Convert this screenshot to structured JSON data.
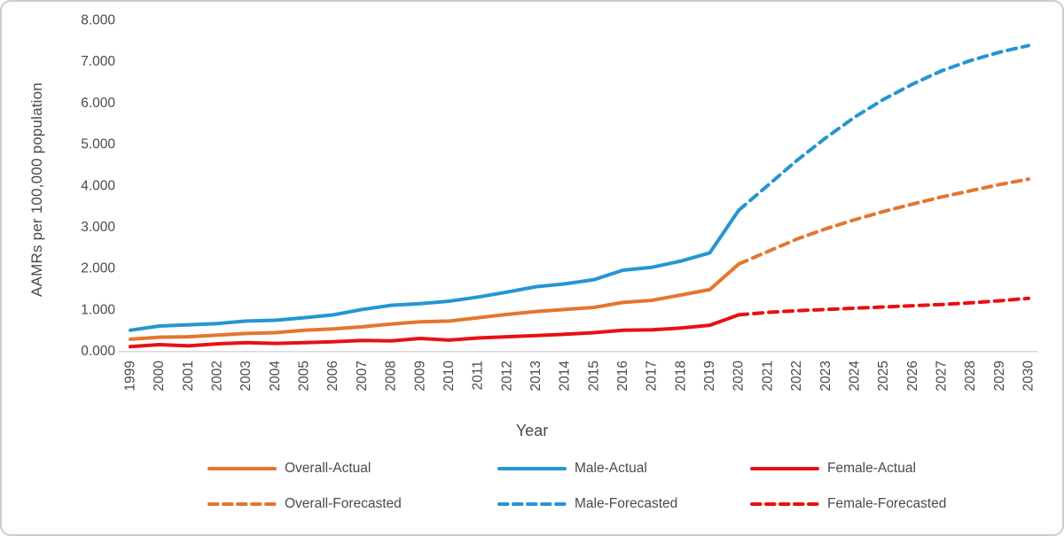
{
  "colors": {
    "axis_line": "#d9d9d9",
    "text": "#4a4a4a",
    "border": "#cccccc",
    "overall": "#e4762f",
    "male": "#2596d1",
    "female": "#e81014"
  },
  "chart_data": {
    "type": "line",
    "title": "",
    "xlabel": "Year",
    "ylabel": "AAMRs per 100,000 population",
    "ylim": [
      0,
      8
    ],
    "ytick_labels": [
      "0.000",
      "1.000",
      "2.000",
      "3.000",
      "4.000",
      "5.000",
      "6.000",
      "7.000",
      "8.000"
    ],
    "grid": "off",
    "legend_position": "bottom",
    "x": [
      1999,
      2000,
      2001,
      2002,
      2003,
      2004,
      2005,
      2006,
      2007,
      2008,
      2009,
      2010,
      2011,
      2012,
      2013,
      2014,
      2015,
      2016,
      2017,
      2018,
      2019,
      2020,
      2021,
      2022,
      2023,
      2024,
      2025,
      2026,
      2027,
      2028,
      2029,
      2030
    ],
    "series": [
      {
        "name": "Overall-Actual",
        "color_key": "overall",
        "style": "solid",
        "values": [
          0.28,
          0.33,
          0.34,
          0.38,
          0.42,
          0.44,
          0.5,
          0.53,
          0.58,
          0.65,
          0.7,
          0.72,
          0.8,
          0.88,
          0.95,
          1.0,
          1.05,
          1.17,
          1.22,
          1.35,
          1.48,
          2.1,
          null,
          null,
          null,
          null,
          null,
          null,
          null,
          null,
          null,
          null
        ]
      },
      {
        "name": "Male-Actual",
        "color_key": "male",
        "style": "solid",
        "values": [
          0.5,
          0.6,
          0.63,
          0.66,
          0.72,
          0.74,
          0.8,
          0.87,
          1.0,
          1.1,
          1.14,
          1.2,
          1.3,
          1.42,
          1.55,
          1.62,
          1.72,
          1.95,
          2.02,
          2.17,
          2.37,
          3.4,
          null,
          null,
          null,
          null,
          null,
          null,
          null,
          null,
          null,
          null
        ]
      },
      {
        "name": "Female-Actual",
        "color_key": "female",
        "style": "solid",
        "values": [
          0.1,
          0.15,
          0.12,
          0.17,
          0.2,
          0.18,
          0.2,
          0.22,
          0.25,
          0.24,
          0.3,
          0.26,
          0.31,
          0.34,
          0.37,
          0.4,
          0.44,
          0.5,
          0.51,
          0.55,
          0.62,
          0.87,
          null,
          null,
          null,
          null,
          null,
          null,
          null,
          null,
          null,
          null
        ]
      },
      {
        "name": "Overall-Forecasted",
        "color_key": "overall",
        "style": "dashed",
        "values": [
          null,
          null,
          null,
          null,
          null,
          null,
          null,
          null,
          null,
          null,
          null,
          null,
          null,
          null,
          null,
          null,
          null,
          null,
          null,
          null,
          null,
          2.1,
          2.4,
          2.7,
          2.95,
          3.17,
          3.37,
          3.55,
          3.72,
          3.87,
          4.02,
          4.15
        ]
      },
      {
        "name": "Male-Forecasted",
        "color_key": "male",
        "style": "dashed",
        "values": [
          null,
          null,
          null,
          null,
          null,
          null,
          null,
          null,
          null,
          null,
          null,
          null,
          null,
          null,
          null,
          null,
          null,
          null,
          null,
          null,
          null,
          3.4,
          4.0,
          4.6,
          5.15,
          5.65,
          6.08,
          6.45,
          6.77,
          7.02,
          7.22,
          7.38
        ]
      },
      {
        "name": "Female-Forecasted",
        "color_key": "female",
        "style": "dashed",
        "values": [
          null,
          null,
          null,
          null,
          null,
          null,
          null,
          null,
          null,
          null,
          null,
          null,
          null,
          null,
          null,
          null,
          null,
          null,
          null,
          null,
          null,
          0.87,
          0.93,
          0.97,
          1.0,
          1.03,
          1.06,
          1.09,
          1.12,
          1.16,
          1.21,
          1.27
        ]
      }
    ]
  }
}
